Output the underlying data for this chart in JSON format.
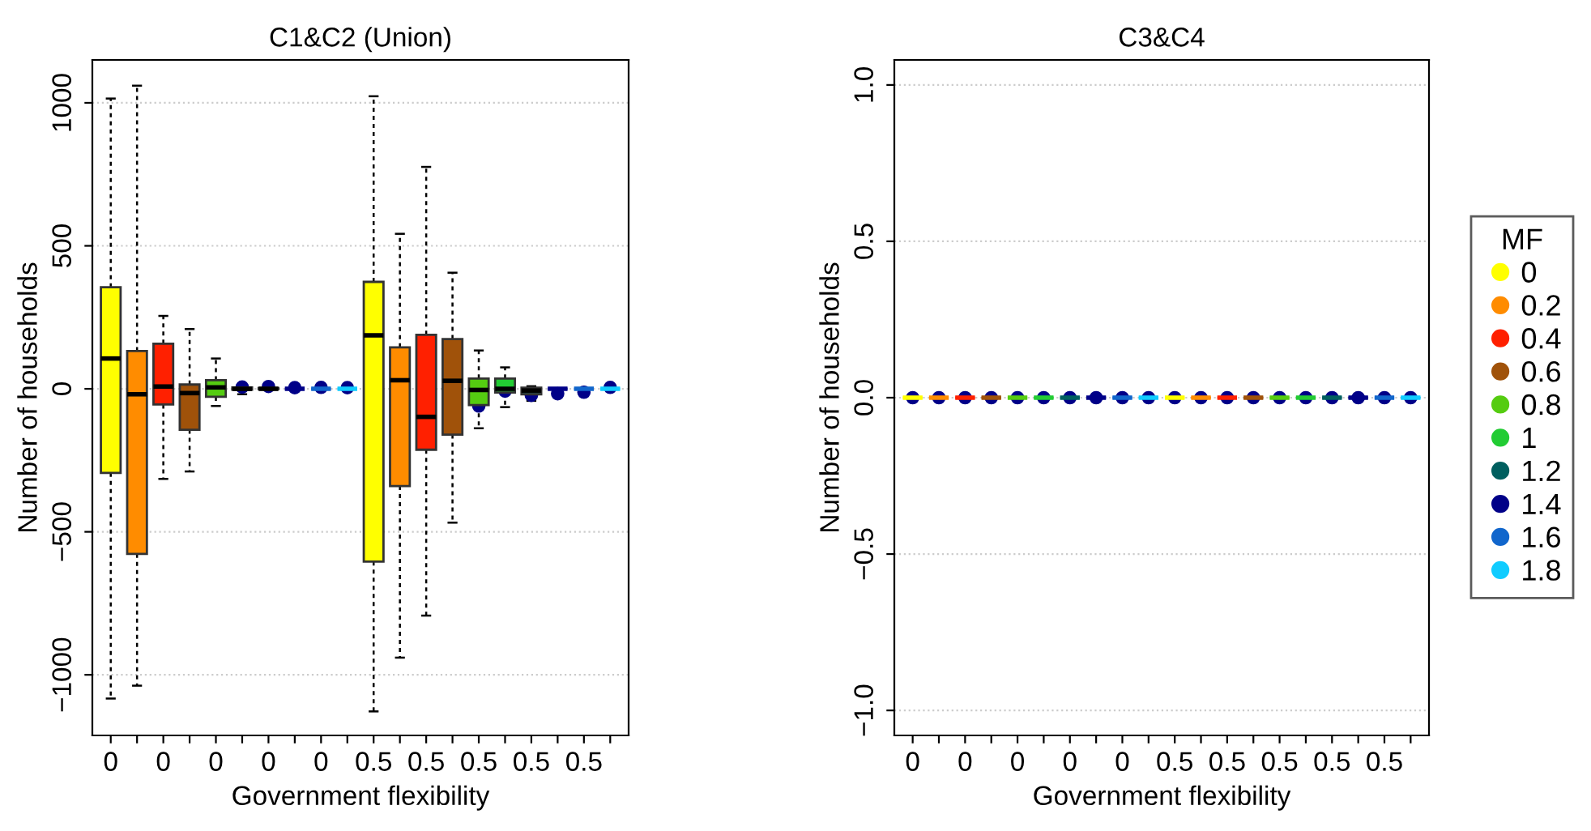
{
  "chart_data": [
    {
      "type": "box",
      "title": "C1&C2 (Union)",
      "xlabel": "Government flexibility",
      "ylabel": "Number of households",
      "grid": "y",
      "ylim": [
        -1212,
        1150
      ],
      "yticks": [
        {
          "value": -1000,
          "label": "−1000"
        },
        {
          "value": -500,
          "label": "−500"
        },
        0,
        500,
        1000
      ],
      "categories": [
        "0",
        null,
        "0",
        null,
        "0",
        null,
        "0",
        null,
        "0",
        null,
        "0.5",
        null,
        "0.5",
        null,
        "0.5",
        null,
        "0.5",
        null,
        "0.5",
        null
      ],
      "series": [
        {
          "color": "#ffff00",
          "boxes": [
            {
              "low": -1083,
              "q1": -294,
              "median": 106,
              "q3": 355,
              "high": 1015,
              "mean": 0
            },
            null,
            null,
            null,
            null,
            null,
            null,
            null,
            null,
            null,
            {
              "low": -1128,
              "q1": -604,
              "median": 187,
              "q3": 374,
              "high": 1023,
              "mean": -26
            },
            null,
            null,
            null,
            null,
            null,
            null,
            null,
            null,
            null
          ]
        },
        {
          "color": "#ff8c00",
          "boxes": [
            null,
            {
              "low": -1038,
              "q1": -577,
              "median": -19,
              "q3": 132,
              "high": 1060,
              "mean": -155
            },
            null,
            null,
            null,
            null,
            null,
            null,
            null,
            null,
            null,
            {
              "low": -940,
              "q1": -340,
              "median": 30,
              "q3": 145,
              "high": 542,
              "mean": 15
            },
            null,
            null,
            null,
            null,
            null,
            null,
            null,
            null
          ]
        },
        {
          "color": "#ff2000",
          "boxes": [
            null,
            null,
            {
              "low": -315,
              "q1": -55,
              "median": 8,
              "q3": 158,
              "high": 255,
              "mean": 85
            },
            null,
            null,
            null,
            null,
            null,
            null,
            null,
            null,
            null,
            {
              "low": -793,
              "q1": -213,
              "median": -98,
              "q3": 189,
              "high": 776,
              "mean": -62
            },
            null,
            null,
            null,
            null,
            null,
            null,
            null
          ]
        },
        {
          "color": "#a0520a",
          "boxes": [
            null,
            null,
            null,
            {
              "low": -289,
              "q1": -143,
              "median": -15,
              "q3": 15,
              "high": 209,
              "mean": -55
            },
            null,
            null,
            null,
            null,
            null,
            null,
            null,
            null,
            null,
            {
              "low": -468,
              "q1": -160,
              "median": 28,
              "q3": 174,
              "high": 406,
              "mean": 42
            },
            null,
            null,
            null,
            null,
            null,
            null
          ]
        },
        {
          "color": "#55cc11",
          "boxes": [
            null,
            null,
            null,
            null,
            {
              "low": -60,
              "q1": -28,
              "median": 5,
              "q3": 30,
              "high": 106,
              "mean": -4
            },
            null,
            null,
            null,
            null,
            null,
            null,
            null,
            null,
            null,
            {
              "low": -138,
              "q1": -57,
              "median": -4,
              "q3": 36,
              "high": 134,
              "mean": -60
            },
            null,
            null,
            null,
            null,
            null
          ]
        },
        {
          "color": "#22cc33",
          "boxes": [
            null,
            null,
            null,
            null,
            null,
            {
              "low": -19,
              "q1": -3,
              "median": 0,
              "q3": 5,
              "high": 12,
              "mean": 6
            },
            null,
            null,
            null,
            null,
            null,
            null,
            null,
            null,
            null,
            {
              "low": -64,
              "q1": -13,
              "median": 0,
              "q3": 36,
              "high": 75,
              "mean": -8
            },
            null,
            null,
            null,
            null
          ]
        },
        {
          "color": "#005f5f",
          "boxes": [
            null,
            null,
            null,
            null,
            null,
            null,
            {
              "low": -3,
              "q1": -1,
              "median": 0,
              "q3": 3,
              "high": 10,
              "mean": 8
            },
            null,
            null,
            null,
            null,
            null,
            null,
            null,
            null,
            null,
            {
              "low": -42,
              "q1": -19,
              "median": -6,
              "q3": 4,
              "high": 9,
              "mean": -23
            },
            null,
            null,
            null
          ]
        },
        {
          "color": "#000088",
          "boxes": [
            null,
            null,
            null,
            null,
            null,
            null,
            null,
            {
              "low": 0,
              "q1": 0,
              "median": 0,
              "q3": 0,
              "high": 0,
              "mean": 4
            },
            null,
            null,
            null,
            null,
            null,
            null,
            null,
            null,
            null,
            {
              "low": 0,
              "q1": 0,
              "median": 0,
              "q3": 0,
              "high": 0,
              "mean": -17
            },
            null,
            null
          ]
        },
        {
          "color": "#1166cc",
          "boxes": [
            null,
            null,
            null,
            null,
            null,
            null,
            null,
            null,
            {
              "low": 0,
              "q1": 0,
              "median": 0,
              "q3": 0,
              "high": 0,
              "mean": 5
            },
            null,
            null,
            null,
            null,
            null,
            null,
            null,
            null,
            null,
            {
              "low": 0,
              "q1": 0,
              "median": 0,
              "q3": 0,
              "high": 0,
              "mean": -12
            },
            null
          ]
        },
        {
          "color": "#11ccff",
          "boxes": [
            null,
            null,
            null,
            null,
            null,
            null,
            null,
            null,
            null,
            {
              "low": 0,
              "q1": 0,
              "median": 0,
              "q3": 0,
              "high": 0,
              "mean": 4
            },
            null,
            null,
            null,
            null,
            null,
            null,
            null,
            null,
            null,
            {
              "low": 0,
              "q1": 0,
              "median": 0,
              "q3": 0,
              "high": 0,
              "mean": 5
            }
          ]
        }
      ]
    },
    {
      "type": "box",
      "title": "C3&C4",
      "xlabel": "Government flexibility",
      "ylabel": "Number of households",
      "grid": "y",
      "ylim": [
        -1.08,
        1.08
      ],
      "yticks": [
        {
          "value": -1.0,
          "label": "−1.0"
        },
        {
          "value": -0.5,
          "label": "−0.5"
        },
        {
          "value": 0,
          "label": "0.0"
        },
        {
          "value": 0.5,
          "label": "0.5"
        },
        {
          "value": 1.0,
          "label": "1.0"
        }
      ],
      "legend": "right",
      "legend_title": "MF",
      "categories": [
        "0",
        null,
        "0",
        null,
        "0",
        null,
        "0",
        null,
        "0",
        null,
        "0.5",
        null,
        "0.5",
        null,
        "0.5",
        null,
        "0.5",
        null,
        "0.5",
        null
      ],
      "series": [
        {
          "name": "0",
          "color": "#ffff00",
          "boxes": [
            {
              "low": 0,
              "q1": 0,
              "median": 0,
              "q3": 0,
              "high": 0,
              "mean": 0
            },
            null,
            null,
            null,
            null,
            null,
            null,
            null,
            null,
            null,
            {
              "low": 0,
              "q1": 0,
              "median": 0,
              "q3": 0,
              "high": 0,
              "mean": 0
            },
            null,
            null,
            null,
            null,
            null,
            null,
            null,
            null,
            null
          ]
        },
        {
          "name": "0.2",
          "color": "#ff8c00",
          "boxes": [
            null,
            {
              "low": 0,
              "q1": 0,
              "median": 0,
              "q3": 0,
              "high": 0,
              "mean": 0
            },
            null,
            null,
            null,
            null,
            null,
            null,
            null,
            null,
            null,
            {
              "low": 0,
              "q1": 0,
              "median": 0,
              "q3": 0,
              "high": 0,
              "mean": 0
            },
            null,
            null,
            null,
            null,
            null,
            null,
            null,
            null
          ]
        },
        {
          "name": "0.4",
          "color": "#ff2000",
          "boxes": [
            null,
            null,
            {
              "low": 0,
              "q1": 0,
              "median": 0,
              "q3": 0,
              "high": 0,
              "mean": 0
            },
            null,
            null,
            null,
            null,
            null,
            null,
            null,
            null,
            null,
            {
              "low": 0,
              "q1": 0,
              "median": 0,
              "q3": 0,
              "high": 0,
              "mean": 0
            },
            null,
            null,
            null,
            null,
            null,
            null,
            null
          ]
        },
        {
          "name": "0.6",
          "color": "#a0520a",
          "boxes": [
            null,
            null,
            null,
            {
              "low": 0,
              "q1": 0,
              "median": 0,
              "q3": 0,
              "high": 0,
              "mean": 0
            },
            null,
            null,
            null,
            null,
            null,
            null,
            null,
            null,
            null,
            {
              "low": 0,
              "q1": 0,
              "median": 0,
              "q3": 0,
              "high": 0,
              "mean": 0
            },
            null,
            null,
            null,
            null,
            null,
            null
          ]
        },
        {
          "name": "0.8",
          "color": "#55cc11",
          "boxes": [
            null,
            null,
            null,
            null,
            {
              "low": 0,
              "q1": 0,
              "median": 0,
              "q3": 0,
              "high": 0,
              "mean": 0
            },
            null,
            null,
            null,
            null,
            null,
            null,
            null,
            null,
            null,
            {
              "low": 0,
              "q1": 0,
              "median": 0,
              "q3": 0,
              "high": 0,
              "mean": 0
            },
            null,
            null,
            null,
            null,
            null
          ]
        },
        {
          "name": "1",
          "color": "#22cc33",
          "boxes": [
            null,
            null,
            null,
            null,
            null,
            {
              "low": 0,
              "q1": 0,
              "median": 0,
              "q3": 0,
              "high": 0,
              "mean": 0
            },
            null,
            null,
            null,
            null,
            null,
            null,
            null,
            null,
            null,
            {
              "low": 0,
              "q1": 0,
              "median": 0,
              "q3": 0,
              "high": 0,
              "mean": 0
            },
            null,
            null,
            null,
            null
          ]
        },
        {
          "name": "1.2",
          "color": "#005f5f",
          "boxes": [
            null,
            null,
            null,
            null,
            null,
            null,
            {
              "low": 0,
              "q1": 0,
              "median": 0,
              "q3": 0,
              "high": 0,
              "mean": 0
            },
            null,
            null,
            null,
            null,
            null,
            null,
            null,
            null,
            null,
            {
              "low": 0,
              "q1": 0,
              "median": 0,
              "q3": 0,
              "high": 0,
              "mean": 0
            },
            null,
            null,
            null
          ]
        },
        {
          "name": "1.4",
          "color": "#000088",
          "boxes": [
            null,
            null,
            null,
            null,
            null,
            null,
            null,
            {
              "low": 0,
              "q1": 0,
              "median": 0,
              "q3": 0,
              "high": 0,
              "mean": 0
            },
            null,
            null,
            null,
            null,
            null,
            null,
            null,
            null,
            null,
            {
              "low": 0,
              "q1": 0,
              "median": 0,
              "q3": 0,
              "high": 0,
              "mean": 0
            },
            null,
            null
          ]
        },
        {
          "name": "1.6",
          "color": "#1166cc",
          "boxes": [
            null,
            null,
            null,
            null,
            null,
            null,
            null,
            null,
            {
              "low": 0,
              "q1": 0,
              "median": 0,
              "q3": 0,
              "high": 0,
              "mean": 0
            },
            null,
            null,
            null,
            null,
            null,
            null,
            null,
            null,
            null,
            {
              "low": 0,
              "q1": 0,
              "median": 0,
              "q3": 0,
              "high": 0,
              "mean": 0
            },
            null
          ]
        },
        {
          "name": "1.8",
          "color": "#11ccff",
          "boxes": [
            null,
            null,
            null,
            null,
            null,
            null,
            null,
            null,
            null,
            {
              "low": 0,
              "q1": 0,
              "median": 0,
              "q3": 0,
              "high": 0,
              "mean": 0
            },
            null,
            null,
            null,
            null,
            null,
            null,
            null,
            null,
            null,
            {
              "low": 0,
              "q1": 0,
              "median": 0,
              "q3": 0,
              "high": 0,
              "mean": 0
            }
          ]
        }
      ]
    }
  ]
}
